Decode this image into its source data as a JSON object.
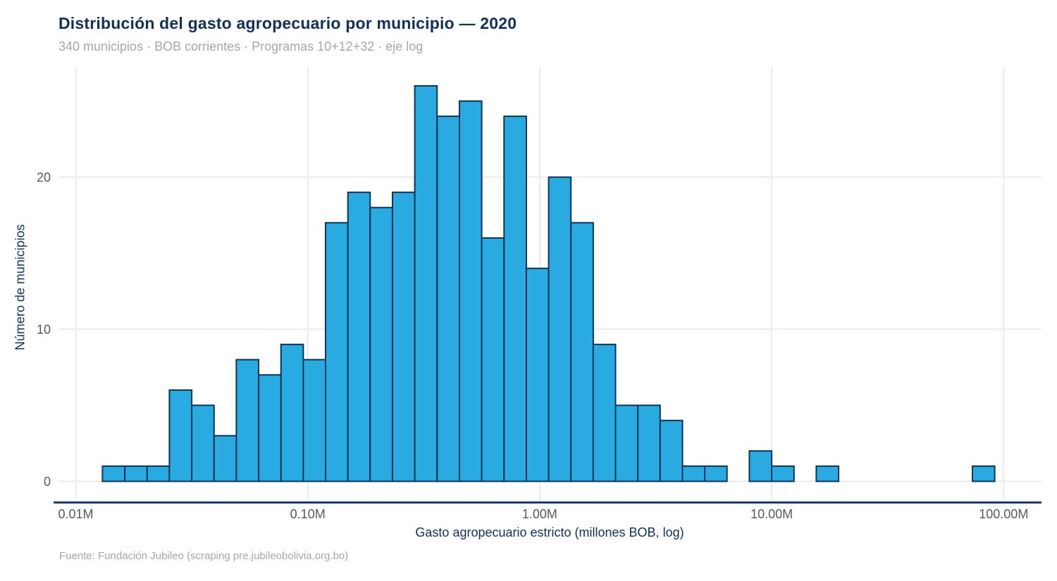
{
  "footer": {
    "source": "Fuente: Fundación Jubileo (scraping pre.jubileobolivia.org.bo)"
  },
  "colors": {
    "background": "#ffffff",
    "title_navy": "#12305a",
    "bar_fill": "#29abe2",
    "bar_stroke": "#0f3455",
    "axis_line": "#1d4266",
    "gridline": "#ebebeb",
    "tick_text": "#595959",
    "muted_text": "#a7a7a7"
  },
  "chart_data": {
    "type": "bar",
    "subtype": "histogram",
    "title": "Distribución del gasto agropecuario por municipio — 2020",
    "subtitle": "340 municipios · BOB corrientes · Programas 10+12+32 · eje log",
    "xlabel": "Gasto agropecuario estricto (millones BOB, log)",
    "ylabel": "Número de municipios",
    "x_scale": "log",
    "grid": "major-only",
    "legend": "none",
    "xlim_millions": [
      0.0085,
      145
    ],
    "ylim": [
      0,
      27.2
    ],
    "x_ticks": [
      {
        "label": "0.01M",
        "value": 0.01
      },
      {
        "label": "0.10M",
        "value": 0.1
      },
      {
        "label": "1.00M",
        "value": 1
      },
      {
        "label": "10.00M",
        "value": 10
      },
      {
        "label": "100.00M",
        "value": 100
      }
    ],
    "y_ticks": [
      {
        "label": "0",
        "value": 0
      },
      {
        "label": "10",
        "value": 10
      },
      {
        "label": "20",
        "value": 20
      }
    ],
    "bin_edges_millions": [
      0.01304,
      0.01628,
      0.02031,
      0.02534,
      0.03162,
      0.03946,
      0.04924,
      0.06144,
      0.07667,
      0.09567,
      0.1194,
      0.149,
      0.1859,
      0.2319,
      0.2894,
      0.3611,
      0.4507,
      0.5623,
      0.7017,
      0.8756,
      1.093,
      1.363,
      1.701,
      2.123,
      2.649,
      3.305,
      4.124,
      5.146,
      6.421,
      8.012,
      10.0,
      12.48,
      15.57,
      19.43,
      24.24,
      30.25,
      37.74,
      47.1,
      58.77,
      73.33,
      91.5
    ],
    "counts": [
      1,
      1,
      1,
      6,
      5,
      3,
      8,
      7,
      9,
      8,
      17,
      19,
      18,
      19,
      26,
      24,
      25,
      16,
      24,
      14,
      20,
      17,
      9,
      5,
      5,
      4,
      1,
      1,
      0,
      2,
      1,
      0,
      1,
      0,
      0,
      0,
      0,
      0,
      0,
      1
    ]
  }
}
